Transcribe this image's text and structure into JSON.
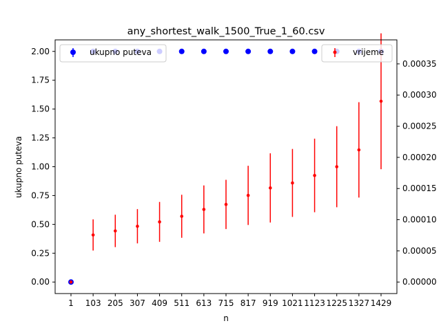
{
  "chart_data": {
    "type": "scatter",
    "title": "any_shortest_walk_1500_True_1_60.csv",
    "xlabel": "n",
    "ylabel_left": "ukupno puteva",
    "ylabel_right": "",
    "categories": [
      "1",
      "103",
      "205",
      "307",
      "409",
      "511",
      "613",
      "715",
      "817",
      "919",
      "1021",
      "1123",
      "1225",
      "1327",
      "1429"
    ],
    "left_axis": {
      "ylim": [
        -0.1,
        2.1
      ],
      "ticks": [
        0.0,
        0.25,
        0.5,
        0.75,
        1.0,
        1.25,
        1.5,
        1.75,
        2.0
      ],
      "tick_labels": [
        "0.00",
        "0.25",
        "0.50",
        "0.75",
        "1.00",
        "1.25",
        "1.50",
        "1.75",
        "2.00"
      ]
    },
    "right_axis": {
      "ylim": [
        -1.85e-05,
        0.0003885
      ],
      "ticks": [
        0.0,
        5e-05,
        0.0001,
        0.00015,
        0.0002,
        0.00025,
        0.0003,
        0.00035
      ],
      "tick_labels": [
        "0.00000",
        "0.00005",
        "0.00010",
        "0.00015",
        "0.00020",
        "0.00025",
        "0.00030",
        "0.00035"
      ]
    },
    "series": [
      {
        "name": "ukupno puteva",
        "axis": "left",
        "color": "#0000ff",
        "values": [
          0,
          2,
          2,
          2,
          2,
          2,
          2,
          2,
          2,
          2,
          2,
          2,
          2,
          2,
          2
        ],
        "errors": [
          0,
          0,
          0,
          0,
          0,
          0,
          0,
          0,
          0,
          0,
          0,
          0,
          0,
          0,
          0
        ]
      },
      {
        "name": "vrijeme",
        "axis": "right",
        "color": "#ff0000",
        "values": [
          0.0,
          7.55e-05,
          8.2e-05,
          8.95e-05,
          9.65e-05,
          0.0001055,
          0.0001165,
          0.0001245,
          0.000139,
          0.000151,
          0.000159,
          0.000171,
          0.000185,
          0.000212,
          0.00029
        ],
        "errors": [
          0.0,
          2.5e-05,
          2.6e-05,
          2.75e-05,
          3.2e-05,
          3.45e-05,
          3.85e-05,
          3.95e-05,
          4.75e-05,
          5.55e-05,
          5.45e-05,
          5.9e-05,
          6.5e-05,
          7.65e-05,
          0.000109
        ]
      }
    ],
    "legend_left": {
      "label": "ukupno puteva",
      "placement": "upper-left"
    },
    "legend_right": {
      "label": "vrijeme",
      "placement": "upper-right"
    },
    "grid": false
  }
}
